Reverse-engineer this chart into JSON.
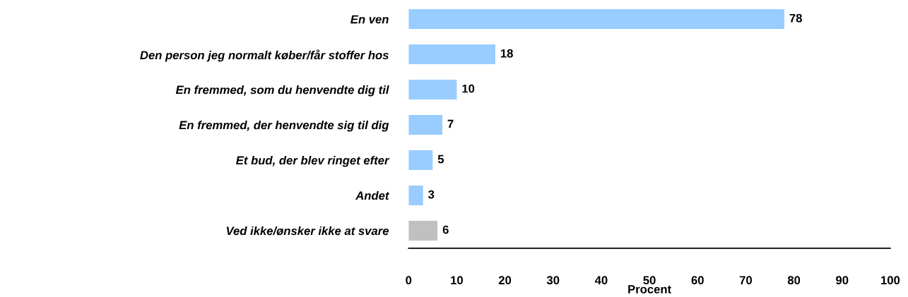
{
  "chart_data": {
    "type": "bar",
    "orientation": "horizontal",
    "xlabel": "Procent",
    "categories": [
      "En ven",
      "Den person jeg normalt køber/får stoffer hos",
      "En fremmed, som du henvendte dig til",
      "En fremmed, der henvendte sig til dig",
      "Et bud, der blev ringet efter",
      "Andet",
      "Ved ikke/ønsker ikke at svare"
    ],
    "values": [
      78,
      18,
      10,
      7,
      5,
      3,
      6
    ],
    "colors": [
      "#99ccff",
      "#99ccff",
      "#99ccff",
      "#99ccff",
      "#99ccff",
      "#99ccff",
      "#c0c0c0"
    ],
    "xlim": [
      0,
      100
    ],
    "xticks": [
      0,
      10,
      20,
      30,
      40,
      50,
      60,
      70,
      80,
      90,
      100
    ],
    "data_labels": true,
    "grid": false,
    "legend": false
  }
}
